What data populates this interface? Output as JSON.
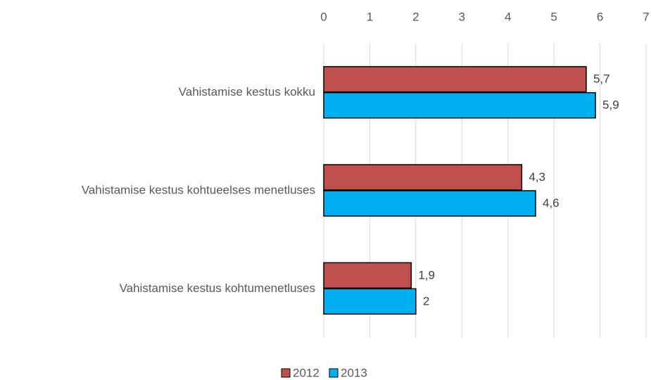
{
  "chart_data": {
    "type": "hbar",
    "categories": [
      "Vahistamise kestus kokku",
      "Vahistamise kestus kohtueelses menetluses",
      "Vahistamise kestus kohtumenetluses"
    ],
    "series": [
      {
        "name": "2012",
        "color": "#c0504d",
        "values": [
          5.7,
          4.3,
          1.9
        ],
        "value_labels": [
          "5,7",
          "4,3",
          "1,9"
        ]
      },
      {
        "name": "2013",
        "color": "#00b0f0",
        "values": [
          5.9,
          4.6,
          2
        ],
        "value_labels": [
          "5,9",
          "4,6",
          "2"
        ]
      }
    ],
    "xlim": [
      0,
      7
    ],
    "xticks": [
      0,
      1,
      2,
      3,
      4,
      5,
      6,
      7
    ],
    "grid": true,
    "legend": "bottom"
  }
}
